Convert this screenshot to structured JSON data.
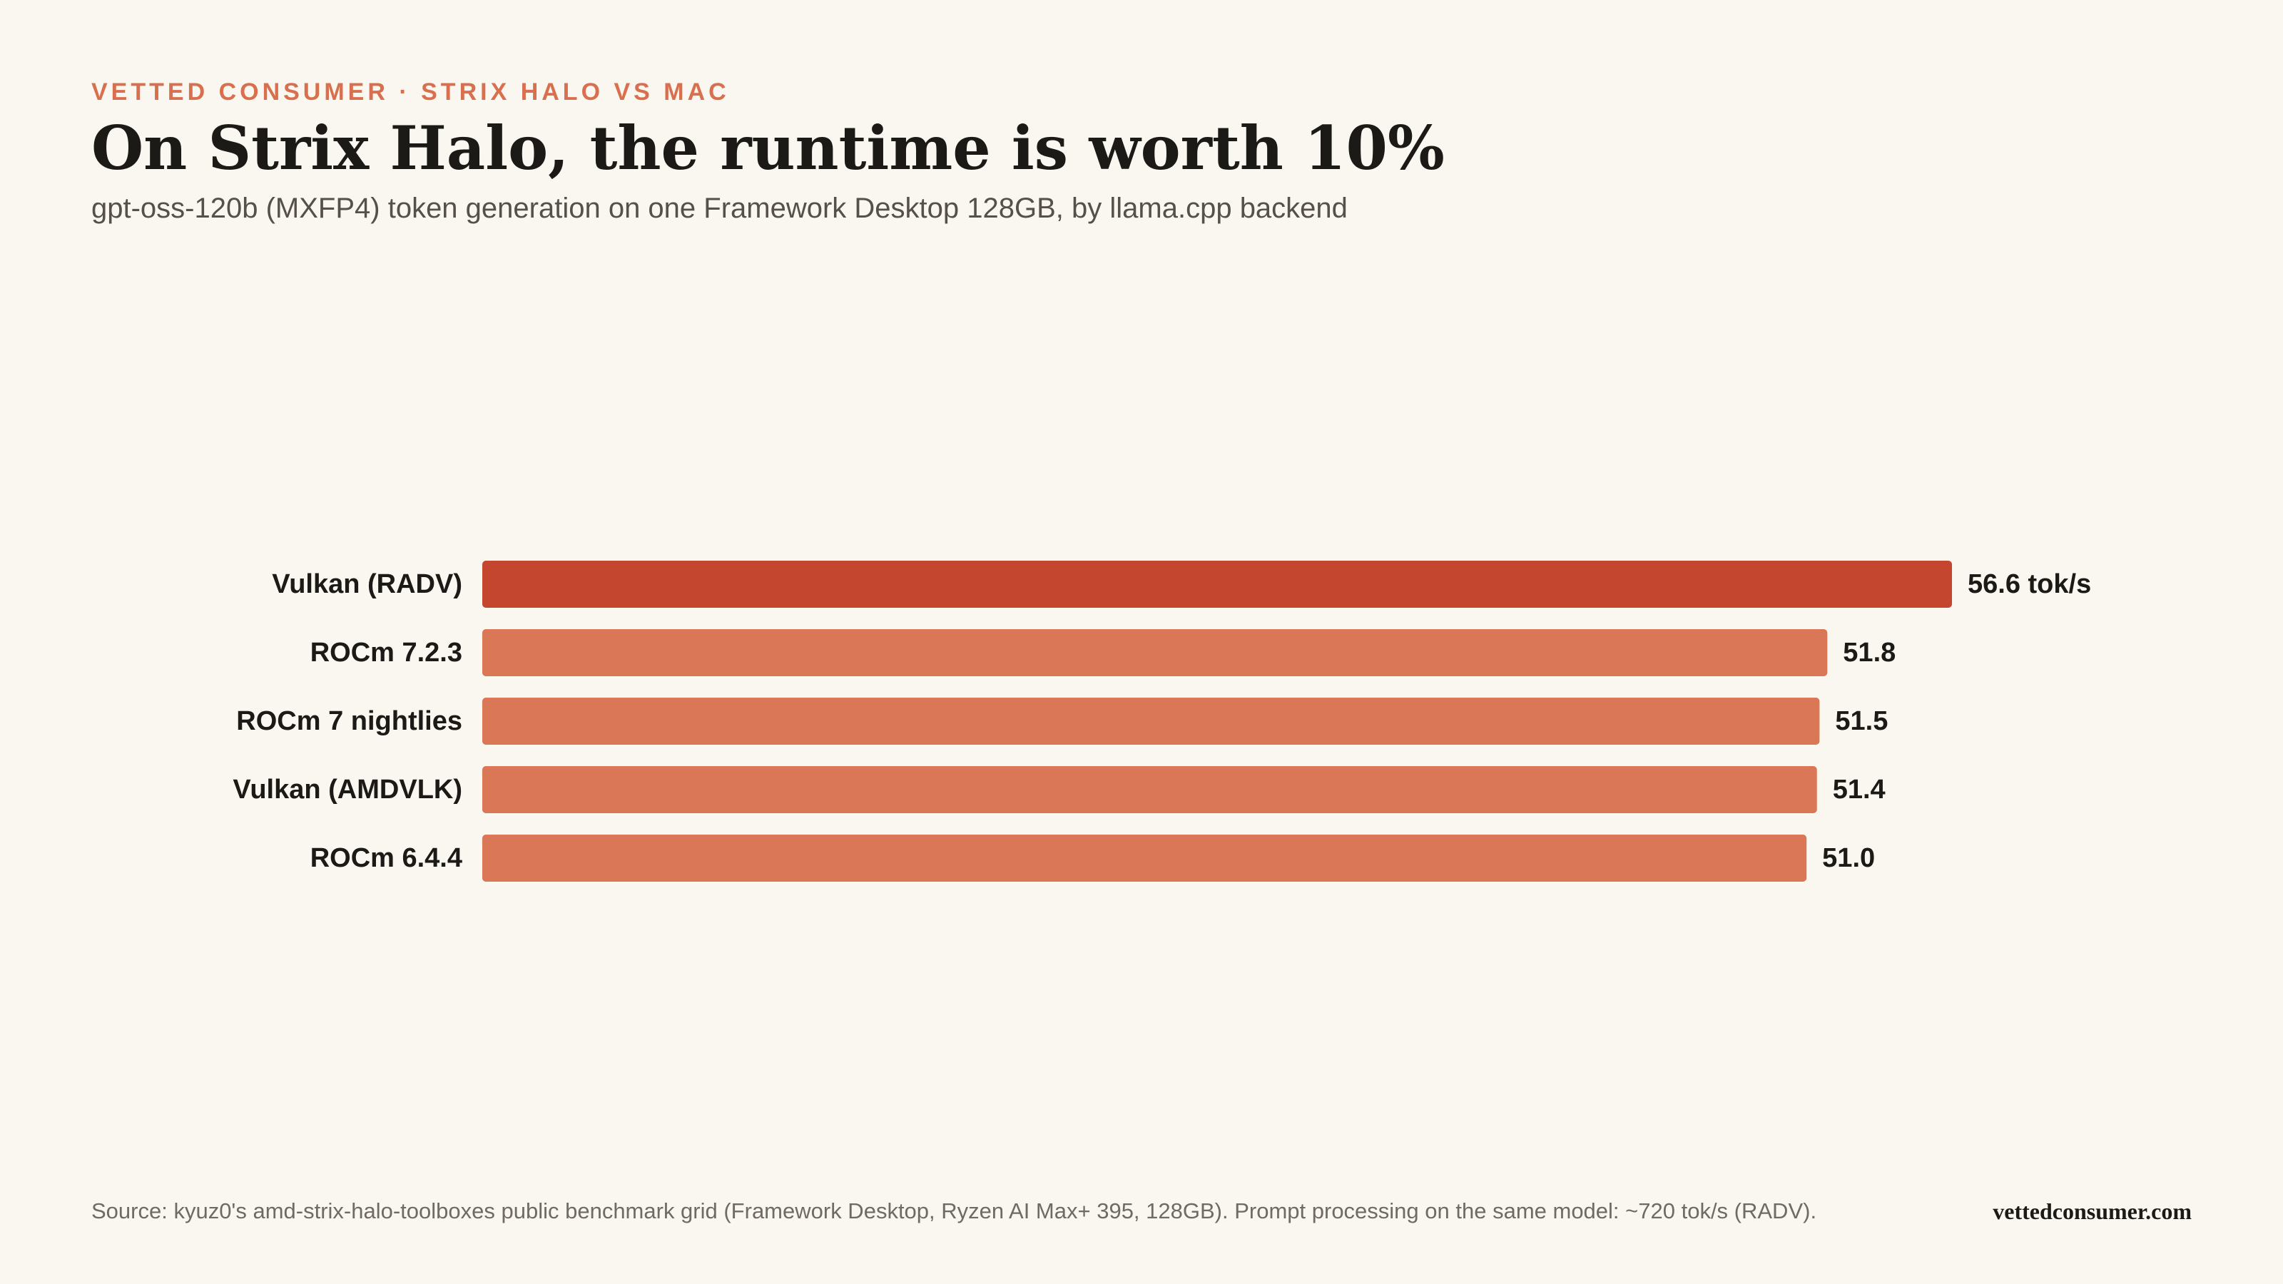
{
  "header": {
    "kicker": "VETTED CONSUMER · STRIX HALO VS MAC",
    "title": "On Strix Halo, the runtime is worth 10%",
    "subtitle": "gpt-oss-120b (MXFP4) token generation on one Framework Desktop 128GB, by llama.cpp backend"
  },
  "footer": {
    "source": "Source: kyuz0's amd-strix-halo-toolboxes public benchmark grid (Framework Desktop, Ryzen AI Max+ 395, 128GB). Prompt processing on the same model: ~720 tok/s (RADV).",
    "brand": "vettedconsumer.com"
  },
  "colors": {
    "highlight": "#c5462f",
    "bar": "#d97757",
    "kicker": "#d8704f",
    "background": "#f9f7ef"
  },
  "chart_data": {
    "type": "bar",
    "orientation": "horizontal",
    "title": "On Strix Halo, the runtime is worth 10%",
    "subtitle": "gpt-oss-120b (MXFP4) token generation on one Framework Desktop 128GB, by llama.cpp backend",
    "xlabel": "",
    "ylabel": "",
    "unit": "tok/s",
    "categories": [
      "Vulkan (RADV)",
      "ROCm 7.2.3",
      "ROCm 7 nightlies",
      "Vulkan (AMDVLK)",
      "ROCm 6.4.4"
    ],
    "values": [
      56.6,
      51.8,
      51.5,
      51.4,
      51.0
    ],
    "value_labels": [
      "56.6 tok/s",
      "51.8",
      "51.5",
      "51.4",
      "51.0"
    ],
    "highlight_index": 0,
    "xlim": [
      0,
      56.6
    ],
    "grid": false,
    "legend": "none"
  }
}
